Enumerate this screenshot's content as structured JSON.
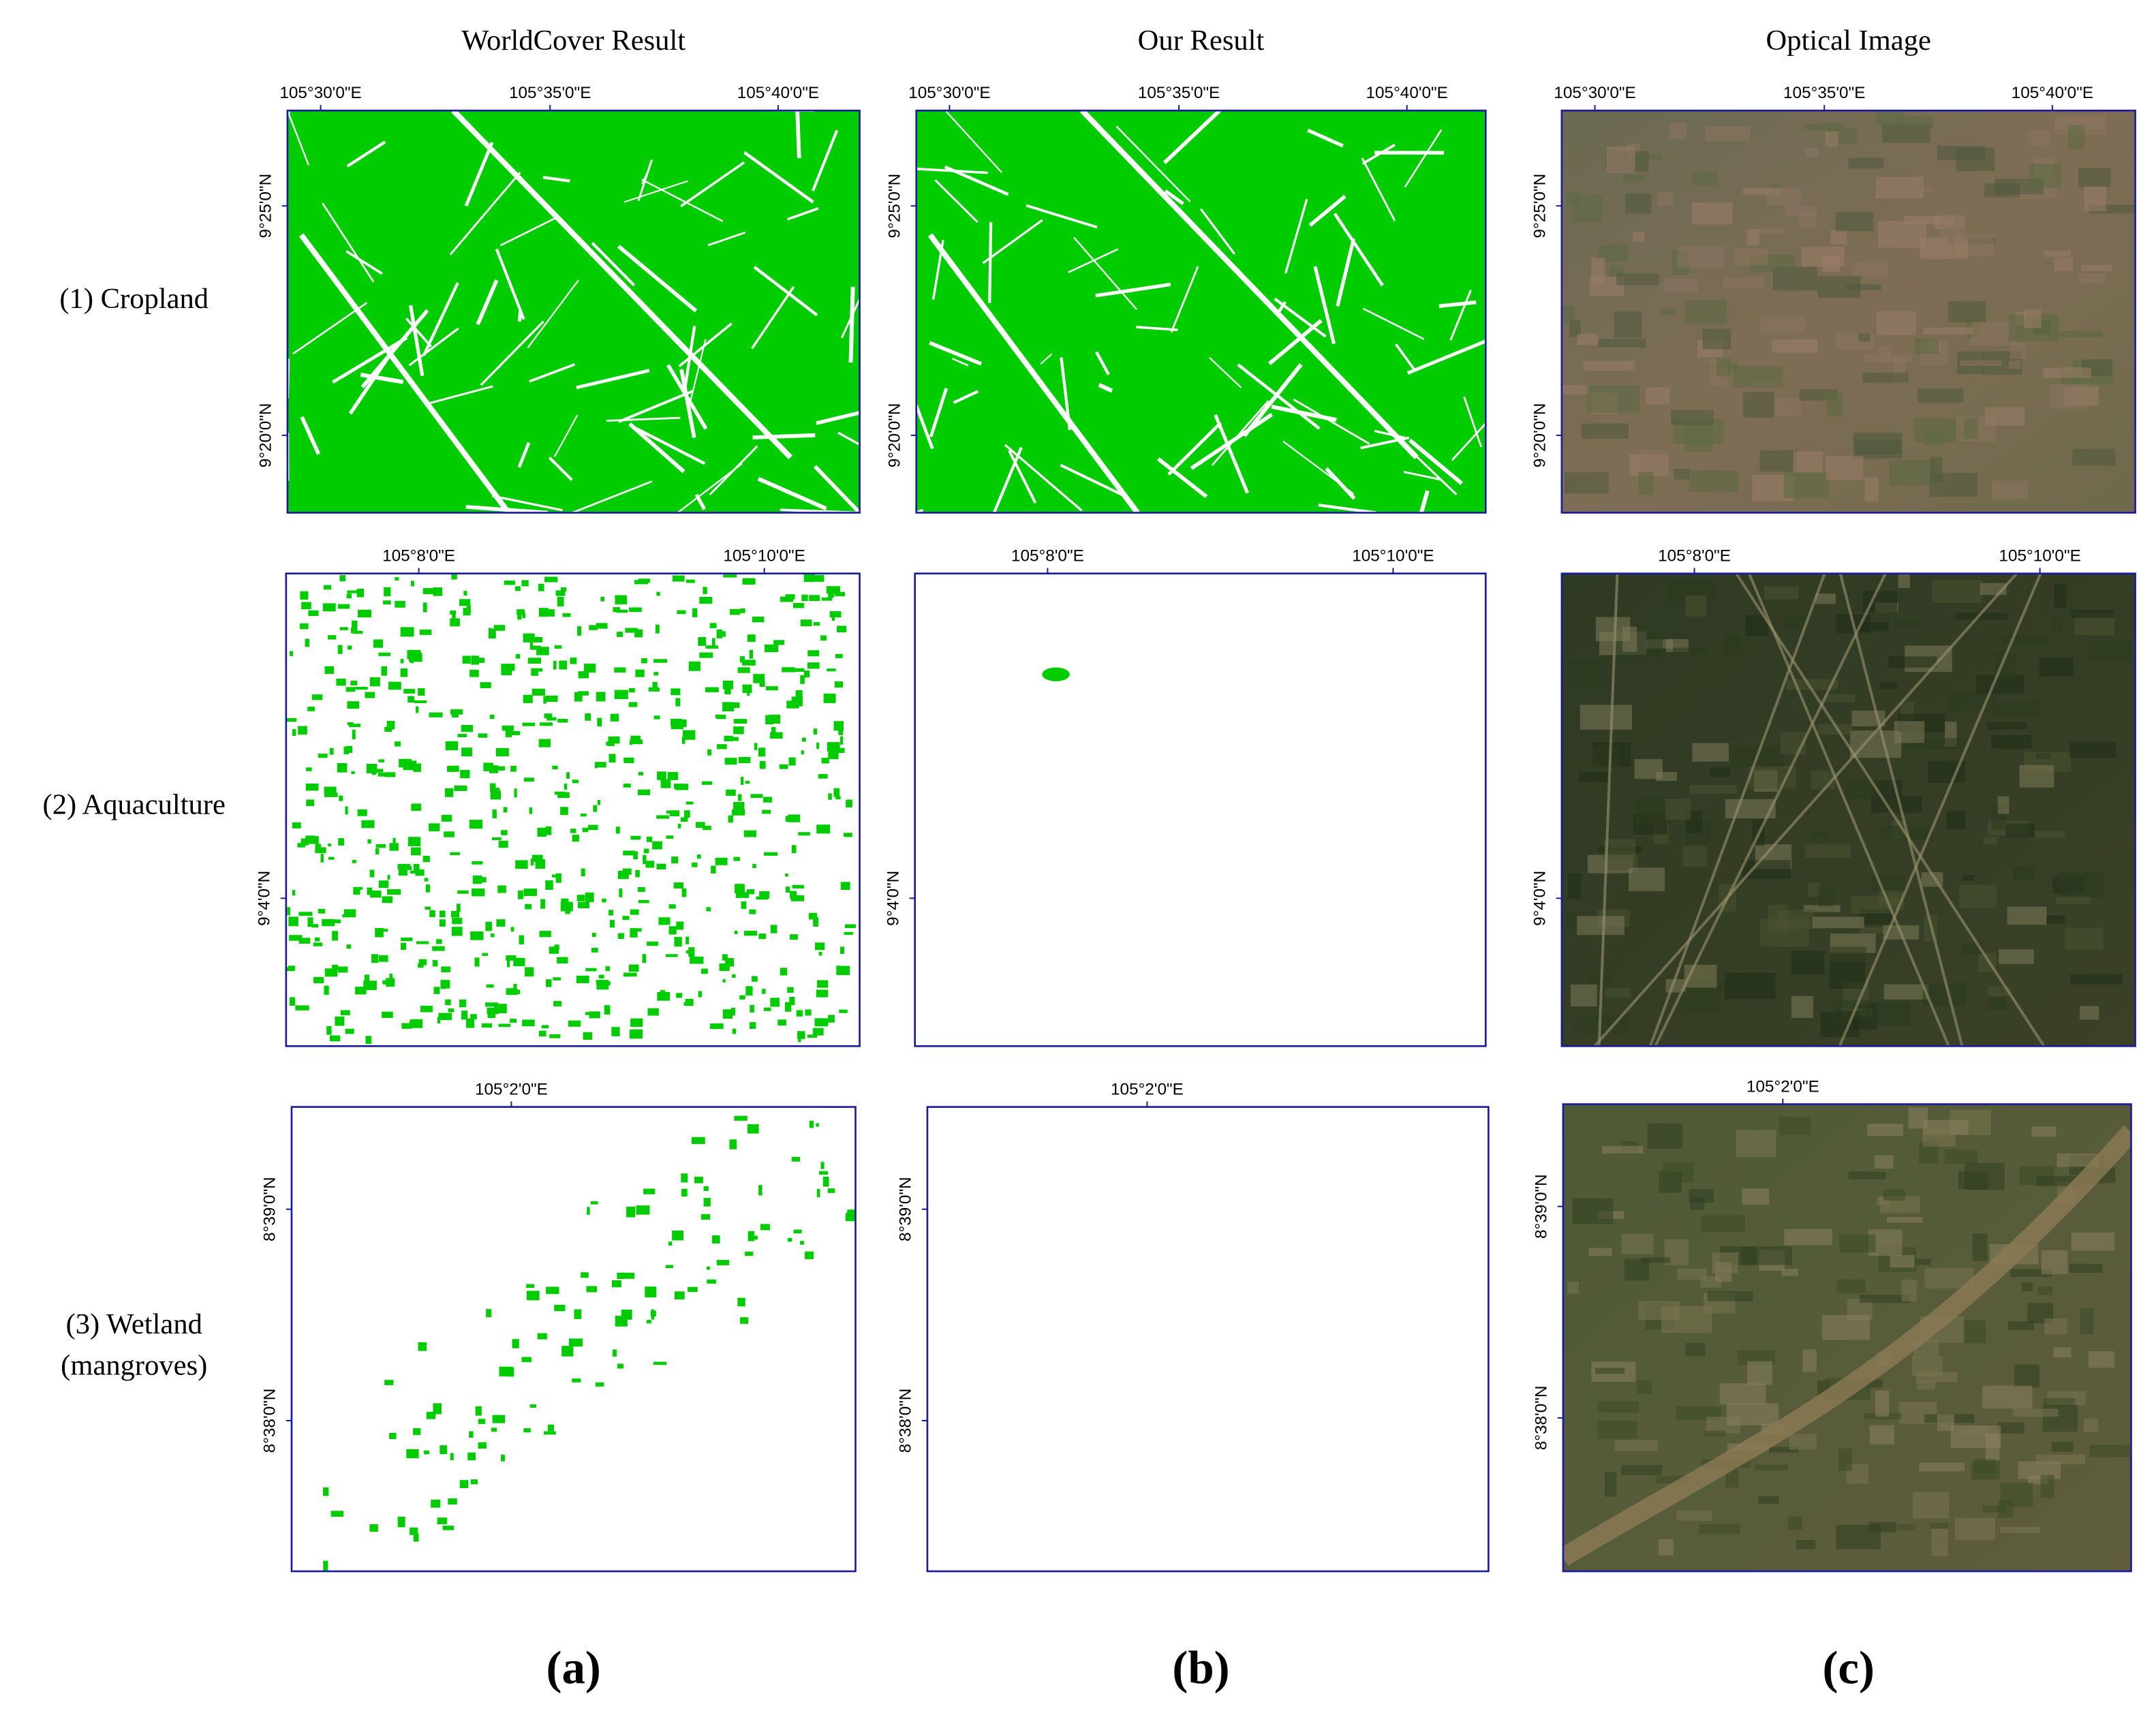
{
  "columns": [
    "WorldCover Result",
    "Our Result",
    "Optical Image"
  ],
  "rows": [
    {
      "label": [
        "(1) Cropland"
      ],
      "x_ticks": [
        "105°30'0\"E",
        "105°35'0\"E",
        "105°40'0\"E"
      ],
      "y_ticks": [
        "9°25'0\"N",
        "9°20'0\"N"
      ]
    },
    {
      "label": [
        "(2) Aquaculture"
      ],
      "x_ticks": [
        "105°8'0\"E",
        "105°10'0\"E"
      ],
      "y_ticks": [
        "9°4'0\"N"
      ]
    },
    {
      "label": [
        "(3) Wetland",
        "(mangroves)"
      ],
      "x_ticks": [
        "105°2'0\"E"
      ],
      "y_ticks": [
        "8°39'0\"N",
        "8°38'0\"N"
      ]
    }
  ],
  "panel_labels": [
    "(a)",
    "(b)",
    "(c)"
  ]
}
